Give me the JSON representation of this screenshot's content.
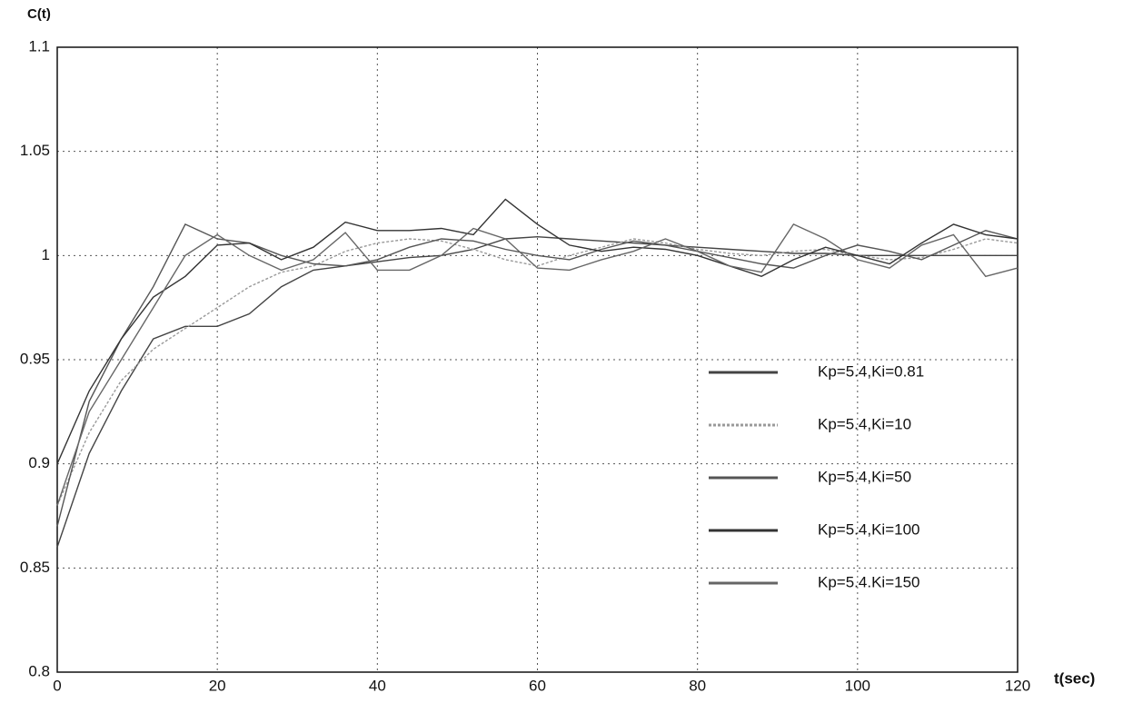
{
  "chart_data": {
    "type": "line",
    "y_label": "C(t)",
    "x_label": "t(sec)",
    "x": [
      0,
      4,
      8,
      12,
      16,
      20,
      24,
      28,
      32,
      36,
      40,
      44,
      48,
      52,
      56,
      60,
      64,
      68,
      72,
      76,
      80,
      84,
      88,
      92,
      96,
      100,
      104,
      108,
      112,
      116,
      120
    ],
    "series": [
      {
        "name": "Kp=5.4,Ki=0.81",
        "color": "#444444",
        "dash": false,
        "values": [
          0.86,
          0.905,
          0.935,
          0.96,
          0.966,
          0.966,
          0.972,
          0.985,
          0.993,
          0.995,
          0.997,
          0.999,
          1,
          1.003,
          1.008,
          1.009,
          1.008,
          1.007,
          1.006,
          1.005,
          1.004,
          1.003,
          1.002,
          1.001,
          1.001,
          1,
          1,
          1,
          1,
          1,
          1
        ]
      },
      {
        "name": "Kp=5.4,Ki=10",
        "color": "#9a9a9a",
        "dash": true,
        "values": [
          0.88,
          0.915,
          0.94,
          0.955,
          0.965,
          0.975,
          0.985,
          0.992,
          0.995,
          1.002,
          1.006,
          1.008,
          1.007,
          1.003,
          0.998,
          0.995,
          1,
          1.004,
          1.008,
          1.006,
          1.003,
          1.001,
          1,
          1.002,
          1.003,
          1,
          0.998,
          0.999,
          1.003,
          1.008,
          1.006
        ]
      },
      {
        "name": "Kp=5.4,Ki=50",
        "color": "#555555",
        "dash": false,
        "values": [
          0.87,
          0.93,
          0.96,
          0.985,
          1.015,
          1.008,
          1.006,
          1,
          0.996,
          0.995,
          0.998,
          1.004,
          1.008,
          1.007,
          1.003,
          1,
          0.998,
          1.003,
          1.007,
          1.005,
          1.002,
          0.999,
          0.996,
          0.994,
          1,
          1.005,
          1.002,
          0.998,
          1.005,
          1.012,
          1.008
        ]
      },
      {
        "name": "Kp=5.4,Ki=100",
        "color": "#333333",
        "dash": false,
        "values": [
          0.9,
          0.935,
          0.96,
          0.98,
          0.99,
          1.005,
          1.006,
          0.998,
          1.004,
          1.016,
          1.012,
          1.012,
          1.013,
          1.01,
          1.027,
          1.015,
          1.005,
          1.002,
          1.004,
          1.003,
          1,
          0.995,
          0.99,
          0.998,
          1.004,
          1,
          0.996,
          1.006,
          1.015,
          1.01,
          1.008
        ]
      },
      {
        "name": "Kp=5.4.Ki=150",
        "color": "#666666",
        "dash": false,
        "values": [
          0.88,
          0.925,
          0.95,
          0.975,
          1,
          1.01,
          1,
          0.993,
          0.998,
          1.011,
          0.993,
          0.993,
          1,
          1.013,
          1.008,
          0.994,
          0.993,
          0.998,
          1.002,
          1.008,
          1.002,
          0.995,
          0.992,
          1.015,
          1.008,
          0.998,
          0.994,
          1.005,
          1.01,
          0.99,
          0.994
        ]
      }
    ],
    "xlim": [
      0,
      120
    ],
    "xticks": [
      0,
      20,
      40,
      60,
      80,
      100,
      120
    ],
    "ylim": [
      0.8,
      1.1
    ],
    "yticks": [
      0.8,
      0.85,
      0.9,
      0.95,
      1,
      1.05,
      1.1
    ],
    "grid": true
  }
}
